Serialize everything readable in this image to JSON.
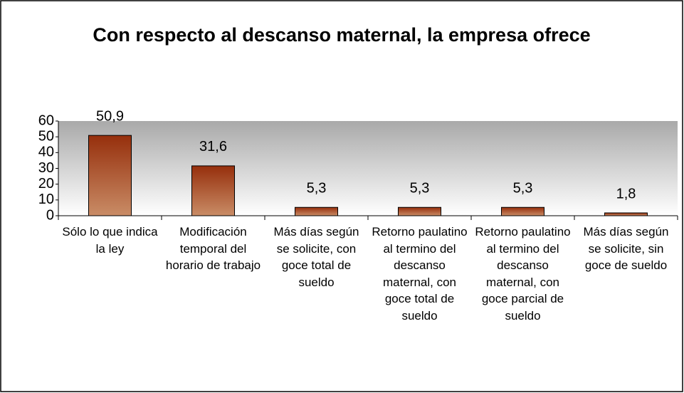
{
  "chart_data": {
    "type": "bar",
    "title": "Con respecto al descanso maternal, la empresa ofrece",
    "categories": [
      "Sólo lo que indica la ley",
      "Modificación temporal del horario de trabajo",
      "Más días según se solicite, con goce total de sueldo",
      "Retorno paulatino al termino del descanso maternal, con goce total de sueldo",
      "Retorno paulatino al termino del descanso maternal, con goce parcial de sueldo",
      "Más días según se solicite, sin goce de sueldo"
    ],
    "values": [
      50.9,
      31.6,
      5.3,
      5.3,
      5.3,
      1.8
    ],
    "value_labels": [
      "50,9",
      "31,6",
      "5,3",
      "5,3",
      "5,3",
      "1,8"
    ],
    "color": "#a0421a",
    "ylim": [
      0,
      60
    ],
    "yticks": [
      0,
      10,
      20,
      30,
      40,
      50,
      60
    ],
    "grid": false
  }
}
